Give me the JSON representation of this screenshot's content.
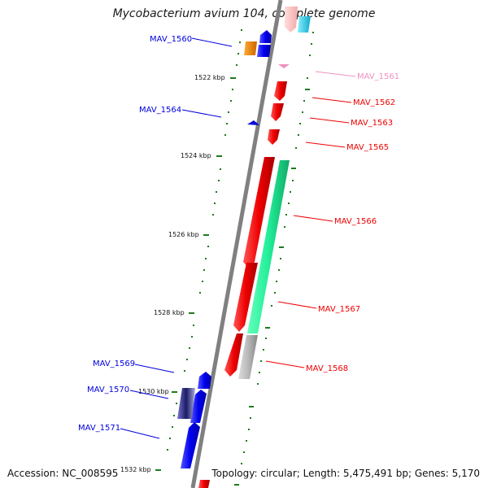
{
  "title": "Mycobacterium avium 104, complete genome",
  "accession": "Accession: NC_008595",
  "topology": "Topology: circular; Length: 5,475,491 bp; Genes: 5,170",
  "kbp_labels": [
    "1522 kbp",
    "1524 kbp",
    "1526 kbp",
    "1528 kbp",
    "1530 kbp",
    "1532 kbp"
  ],
  "gene_labels": {
    "mav_1560": "MAV_1560",
    "mav_1561": "MAV_1561",
    "mav_1562": "MAV_1562",
    "mav_1563": "MAV_1563",
    "mav_1564": "MAV_1564",
    "mav_1565": "MAV_1565",
    "mav_1566": "MAV_1566",
    "mav_1567": "MAV_1567",
    "mav_1568": "MAV_1568",
    "mav_1569": "MAV_1569",
    "mav_1570": "MAV_1570",
    "mav_1571": "MAV_1571"
  },
  "colors": {
    "reverse_strand": "#0000dd",
    "forward_strand": "#ee0000",
    "pseudo_pink": "#f090c0",
    "rna_green": "#22ee99",
    "backbone": "#808080",
    "tick": "#1e7a1e",
    "orange": "#ff8800",
    "cyan": "#22ccee",
    "grey_gene": "#b0b0b0",
    "navy": "#2a2a88"
  }
}
